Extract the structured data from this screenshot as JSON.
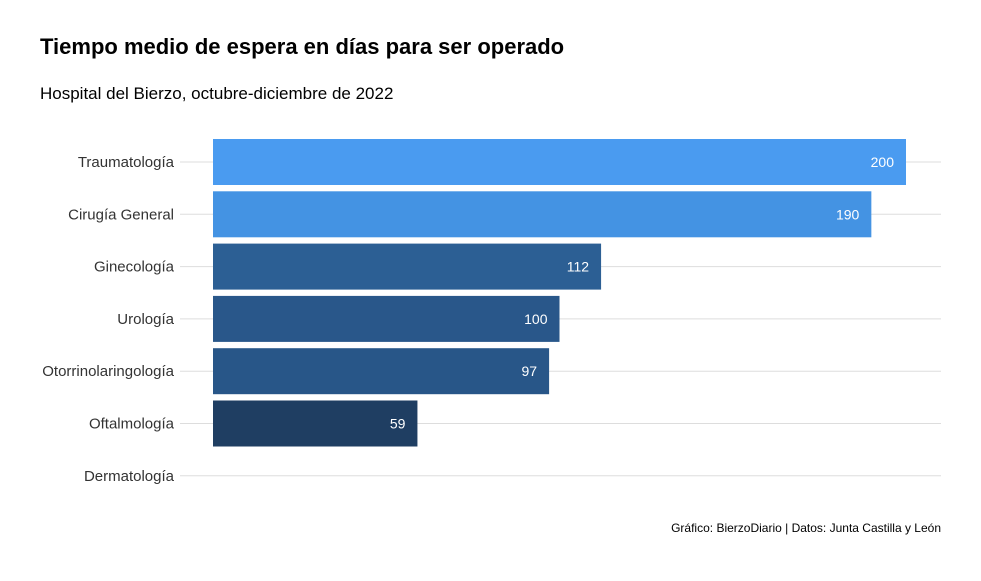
{
  "chart_data": {
    "type": "bar",
    "orientation": "horizontal",
    "title": "Tiempo medio de espera en días para ser operado",
    "subtitle": "Hospital del Bierzo, octubre-diciembre de 2022",
    "caption": "Gráfico: BierzoDiario | Datos: Junta Castilla y León",
    "categories": [
      "Traumatología",
      "Cirugía General",
      "Ginecología",
      "Urología",
      "Otorrinolaringología",
      "Oftalmología",
      "Dermatología"
    ],
    "values": [
      200,
      190,
      112,
      100,
      97,
      59,
      0
    ],
    "data_labels": [
      "200",
      "190",
      "112",
      "100",
      "97",
      "59",
      ""
    ],
    "bar_colors": [
      "#4a9bf0",
      "#4493e3",
      "#2c5f94",
      "#29578a",
      "#285688",
      "#1f3e62",
      "#1f3e62"
    ],
    "grid": true,
    "legend": "none",
    "xlim": [
      0,
      200
    ]
  }
}
